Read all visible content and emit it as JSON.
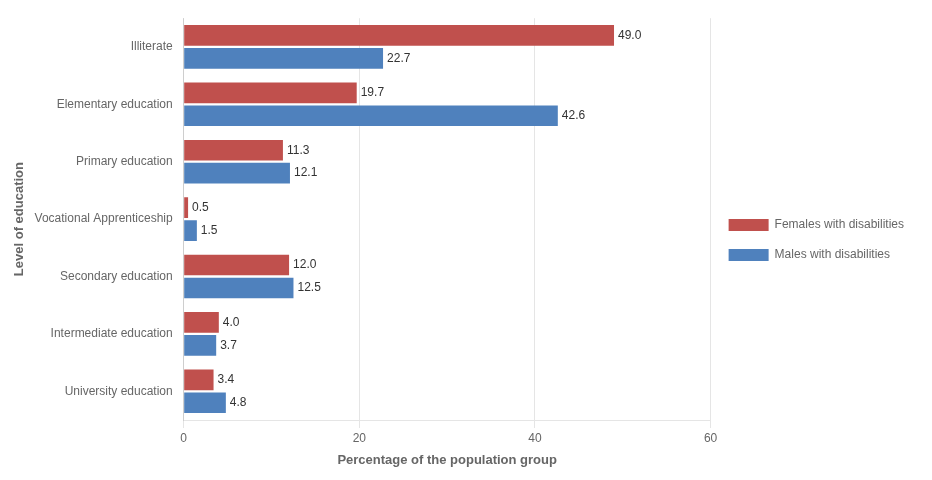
{
  "chart_data": {
    "type": "bar",
    "orientation": "horizontal",
    "categories": [
      "Illiterate",
      "Elementary education",
      "Primary education",
      "Vocational Apprenticeship",
      "Secondary education",
      "Intermediate education",
      "University education"
    ],
    "series": [
      {
        "name": "Females with disabilities",
        "color": "#C0504D",
        "values": [
          49.0,
          19.7,
          11.3,
          0.5,
          12.0,
          4.0,
          3.4
        ],
        "value_labels": [
          "49.0",
          "19.7",
          "11.3",
          "0.5",
          "12.0",
          "4.0",
          "3.4"
        ]
      },
      {
        "name": "Males with disabilities",
        "color": "#4F81BD",
        "values": [
          22.7,
          42.6,
          12.1,
          1.5,
          12.5,
          3.7,
          4.8
        ],
        "value_labels": [
          "22.7",
          "42.6",
          "12.1",
          "1.5",
          "12.5",
          "3.7",
          "4.8"
        ]
      }
    ],
    "xlabel": "Percentage of the population group",
    "ylabel": "Level of education",
    "xlim": [
      0,
      60
    ],
    "xticks": [
      0,
      20,
      40,
      60
    ],
    "grid": true,
    "legend": "right",
    "data_labels": true
  }
}
